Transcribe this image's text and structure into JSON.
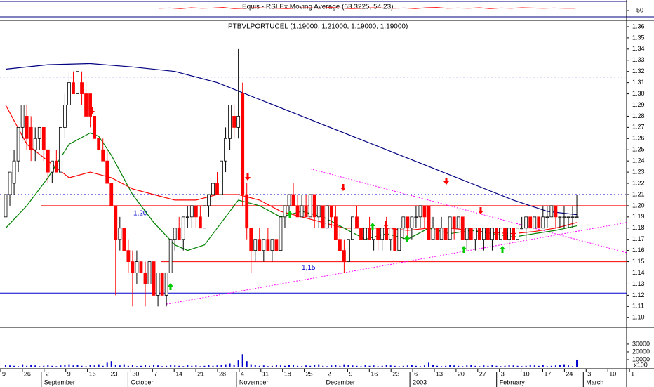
{
  "chart_data": {
    "type": "candlestick",
    "title": "PTBVLPORTUCEL (1.19000, 1.21000, 1.19000, 1.19000)",
    "ylim": [
      1.092,
      1.365
    ],
    "yticks": [
      {
        "value": 1.1,
        "label": "1.10"
      },
      1.11,
      1.12,
      1.13,
      1.14,
      1.15,
      1.16,
      1.17,
      1.18,
      1.19,
      {
        "value": 1.2,
        "label": "1.20"
      },
      1.21,
      1.22,
      1.23,
      1.24,
      1.25,
      1.26,
      1.27,
      1.28,
      1.29,
      {
        "value": 1.3,
        "label": "1.30"
      },
      1.31,
      1.32,
      1.33,
      1.34,
      1.35,
      1.36
    ],
    "up_color": "#ffffff",
    "down_color": "#ff0000",
    "ohlc": [
      [
        1.19,
        1.21,
        1.19,
        1.21
      ],
      [
        1.21,
        1.23,
        1.2,
        1.23
      ],
      [
        1.22,
        1.25,
        1.21,
        1.24
      ],
      [
        1.24,
        1.27,
        1.23,
        1.27
      ],
      [
        1.27,
        1.29,
        1.26,
        1.29
      ],
      [
        1.28,
        1.29,
        1.25,
        1.26
      ],
      [
        1.27,
        1.28,
        1.24,
        1.25
      ],
      [
        1.25,
        1.27,
        1.24,
        1.26
      ],
      [
        1.26,
        1.27,
        1.25,
        1.27
      ],
      [
        1.27,
        1.27,
        1.24,
        1.25
      ],
      [
        1.25,
        1.25,
        1.22,
        1.23
      ],
      [
        1.23,
        1.24,
        1.22,
        1.24
      ],
      [
        1.24,
        1.25,
        1.23,
        1.23
      ],
      [
        1.23,
        1.27,
        1.23,
        1.27
      ],
      [
        1.27,
        1.3,
        1.26,
        1.29
      ],
      [
        1.29,
        1.32,
        1.29,
        1.31
      ],
      [
        1.31,
        1.32,
        1.3,
        1.3
      ],
      [
        1.3,
        1.32,
        1.3,
        1.32
      ],
      [
        1.31,
        1.32,
        1.29,
        1.3
      ],
      [
        1.3,
        1.31,
        1.28,
        1.28
      ],
      [
        1.3,
        1.3,
        1.27,
        1.28
      ],
      [
        1.28,
        1.28,
        1.26,
        1.26
      ],
      [
        1.26,
        1.26,
        1.25,
        1.25
      ],
      [
        1.25,
        1.26,
        1.24,
        1.24
      ],
      [
        1.24,
        1.25,
        1.22,
        1.22
      ],
      [
        1.22,
        1.22,
        1.2,
        1.2
      ],
      [
        1.2,
        1.2,
        1.12,
        1.17
      ],
      [
        1.17,
        1.19,
        1.16,
        1.18
      ],
      [
        1.18,
        1.18,
        1.16,
        1.16
      ],
      [
        1.16,
        1.17,
        1.14,
        1.15
      ],
      [
        1.15,
        1.16,
        1.11,
        1.14
      ],
      [
        1.14,
        1.16,
        1.13,
        1.15
      ],
      [
        1.15,
        1.15,
        1.14,
        1.14
      ],
      [
        1.14,
        1.15,
        1.11,
        1.13
      ],
      [
        1.13,
        1.15,
        1.13,
        1.15
      ],
      [
        1.15,
        1.15,
        1.12,
        1.12
      ],
      [
        1.12,
        1.14,
        1.11,
        1.14
      ],
      [
        1.14,
        1.14,
        1.12,
        1.12
      ],
      [
        1.12,
        1.14,
        1.11,
        1.14
      ],
      [
        1.14,
        1.17,
        1.14,
        1.17
      ],
      [
        1.17,
        1.18,
        1.16,
        1.18
      ],
      [
        1.18,
        1.19,
        1.17,
        1.17
      ],
      [
        1.17,
        1.19,
        1.16,
        1.19
      ],
      [
        1.19,
        1.2,
        1.18,
        1.19
      ],
      [
        1.19,
        1.2,
        1.18,
        1.2
      ],
      [
        1.2,
        1.2,
        1.18,
        1.19
      ],
      [
        1.19,
        1.2,
        1.18,
        1.18
      ],
      [
        1.18,
        1.2,
        1.18,
        1.2
      ],
      [
        1.2,
        1.21,
        1.19,
        1.21
      ],
      [
        1.21,
        1.22,
        1.2,
        1.22
      ],
      [
        1.22,
        1.23,
        1.21,
        1.21
      ],
      [
        1.21,
        1.24,
        1.21,
        1.24
      ],
      [
        1.24,
        1.27,
        1.23,
        1.26
      ],
      [
        1.26,
        1.29,
        1.25,
        1.29
      ],
      [
        1.28,
        1.29,
        1.26,
        1.27
      ],
      [
        1.27,
        1.34,
        1.26,
        1.28
      ],
      [
        1.3,
        1.31,
        1.2,
        1.21
      ],
      [
        1.21,
        1.22,
        1.17,
        1.18
      ],
      [
        1.18,
        1.18,
        1.14,
        1.16
      ],
      [
        1.16,
        1.17,
        1.15,
        1.17
      ],
      [
        1.17,
        1.18,
        1.16,
        1.16
      ],
      [
        1.16,
        1.17,
        1.15,
        1.17
      ],
      [
        1.17,
        1.18,
        1.16,
        1.16
      ],
      [
        1.16,
        1.17,
        1.15,
        1.17
      ],
      [
        1.17,
        1.17,
        1.16,
        1.16
      ],
      [
        1.16,
        1.19,
        1.16,
        1.19
      ],
      [
        1.19,
        1.2,
        1.18,
        1.2
      ],
      [
        1.2,
        1.21,
        1.19,
        1.21
      ],
      [
        1.21,
        1.22,
        1.2,
        1.2
      ],
      [
        1.2,
        1.21,
        1.19,
        1.19
      ],
      [
        1.19,
        1.21,
        1.19,
        1.2
      ],
      [
        1.2,
        1.21,
        1.19,
        1.19
      ],
      [
        1.19,
        1.21,
        1.19,
        1.21
      ],
      [
        1.21,
        1.21,
        1.18,
        1.19
      ],
      [
        1.19,
        1.2,
        1.18,
        1.2
      ],
      [
        1.2,
        1.2,
        1.18,
        1.18
      ],
      [
        1.18,
        1.2,
        1.18,
        1.2
      ],
      [
        1.2,
        1.2,
        1.18,
        1.19
      ],
      [
        1.19,
        1.2,
        1.17,
        1.17
      ],
      [
        1.17,
        1.18,
        1.16,
        1.16
      ],
      [
        1.16,
        1.17,
        1.14,
        1.15
      ],
      [
        1.15,
        1.17,
        1.15,
        1.17
      ],
      [
        1.17,
        1.19,
        1.17,
        1.19
      ],
      [
        1.19,
        1.2,
        1.18,
        1.18
      ],
      [
        1.18,
        1.19,
        1.17,
        1.17
      ],
      [
        1.17,
        1.18,
        1.17,
        1.18
      ],
      [
        1.18,
        1.19,
        1.17,
        1.17
      ],
      [
        1.17,
        1.18,
        1.16,
        1.18
      ],
      [
        1.18,
        1.18,
        1.16,
        1.17
      ],
      [
        1.17,
        1.18,
        1.16,
        1.18
      ],
      [
        1.18,
        1.19,
        1.17,
        1.17
      ],
      [
        1.17,
        1.18,
        1.16,
        1.18
      ],
      [
        1.18,
        1.18,
        1.16,
        1.16
      ],
      [
        1.16,
        1.18,
        1.16,
        1.18
      ],
      [
        1.18,
        1.19,
        1.17,
        1.19
      ],
      [
        1.19,
        1.19,
        1.17,
        1.18
      ],
      [
        1.18,
        1.19,
        1.17,
        1.19
      ],
      [
        1.19,
        1.2,
        1.18,
        1.19
      ],
      [
        1.19,
        1.2,
        1.18,
        1.2
      ],
      [
        1.2,
        1.2,
        1.18,
        1.19
      ],
      [
        1.2,
        1.2,
        1.17,
        1.17
      ],
      [
        1.17,
        1.19,
        1.17,
        1.18
      ],
      [
        1.18,
        1.18,
        1.17,
        1.17
      ],
      [
        1.17,
        1.19,
        1.17,
        1.18
      ],
      [
        1.18,
        1.18,
        1.17,
        1.17
      ],
      [
        1.17,
        1.19,
        1.17,
        1.19
      ],
      [
        1.19,
        1.19,
        1.17,
        1.18
      ],
      [
        1.18,
        1.19,
        1.18,
        1.19
      ],
      [
        1.19,
        1.19,
        1.17,
        1.17
      ],
      [
        1.17,
        1.18,
        1.16,
        1.18
      ],
      [
        1.18,
        1.18,
        1.17,
        1.17
      ],
      [
        1.17,
        1.18,
        1.16,
        1.18
      ],
      [
        1.18,
        1.18,
        1.17,
        1.17
      ],
      [
        1.17,
        1.18,
        1.16,
        1.18
      ],
      [
        1.18,
        1.18,
        1.17,
        1.17
      ],
      [
        1.17,
        1.18,
        1.16,
        1.18
      ],
      [
        1.18,
        1.18,
        1.17,
        1.17
      ],
      [
        1.17,
        1.18,
        1.17,
        1.18
      ],
      [
        1.18,
        1.18,
        1.17,
        1.17
      ],
      [
        1.17,
        1.18,
        1.16,
        1.18
      ],
      [
        1.18,
        1.18,
        1.17,
        1.17
      ],
      [
        1.17,
        1.18,
        1.17,
        1.18
      ],
      [
        1.18,
        1.19,
        1.18,
        1.18
      ],
      [
        1.18,
        1.19,
        1.17,
        1.19
      ],
      [
        1.19,
        1.19,
        1.18,
        1.18
      ],
      [
        1.18,
        1.19,
        1.18,
        1.19
      ],
      [
        1.19,
        1.19,
        1.18,
        1.18
      ],
      [
        1.18,
        1.2,
        1.18,
        1.19
      ],
      [
        1.19,
        1.2,
        1.18,
        1.19
      ],
      [
        1.19,
        1.2,
        1.19,
        1.2
      ],
      [
        1.2,
        1.2,
        1.18,
        1.19
      ],
      [
        1.19,
        1.19,
        1.18,
        1.19
      ],
      [
        1.19,
        1.2,
        1.18,
        1.19
      ],
      [
        1.19,
        1.19,
        1.18,
        1.19
      ],
      [
        1.19,
        1.2,
        1.18,
        1.19
      ],
      [
        1.19,
        1.21,
        1.19,
        1.19
      ]
    ],
    "moving_averages": [
      {
        "color": "#000080",
        "x": [
          0,
          10,
          20,
          30,
          40,
          50,
          60,
          70,
          80,
          90,
          100,
          110,
          120,
          128,
          135
        ],
        "values": [
          1.322,
          1.326,
          1.327,
          1.324,
          1.32,
          1.31,
          1.295,
          1.28,
          1.265,
          1.25,
          1.235,
          1.22,
          1.205,
          1.195,
          1.192
        ]
      },
      {
        "color": "#ff0000",
        "x": [
          0,
          5,
          10,
          15,
          20,
          25,
          30,
          35,
          40,
          45,
          50,
          55,
          60,
          65,
          70,
          75,
          80,
          85,
          90,
          95,
          100,
          105,
          110,
          115,
          120,
          125,
          130,
          135
        ],
        "values": [
          1.29,
          1.255,
          1.24,
          1.225,
          1.23,
          1.225,
          1.215,
          1.21,
          1.205,
          1.205,
          1.21,
          1.21,
          1.205,
          1.195,
          1.19,
          1.185,
          1.18,
          1.18,
          1.18,
          1.178,
          1.18,
          1.18,
          1.178,
          1.176,
          1.175,
          1.177,
          1.18,
          1.185
        ]
      },
      {
        "color": "#008000",
        "x": [
          0,
          5,
          10,
          15,
          20,
          22,
          25,
          30,
          35,
          40,
          43,
          47,
          50,
          55,
          60,
          65,
          70,
          75,
          80,
          85,
          90,
          95,
          100,
          105,
          110,
          115,
          120,
          125,
          130,
          135
        ],
        "values": [
          1.18,
          1.2,
          1.225,
          1.255,
          1.265,
          1.262,
          1.245,
          1.21,
          1.185,
          1.165,
          1.16,
          1.165,
          1.18,
          1.205,
          1.2,
          1.19,
          1.195,
          1.19,
          1.18,
          1.17,
          1.175,
          1.17,
          1.18,
          1.175,
          1.178,
          1.175,
          1.172,
          1.175,
          1.178,
          1.182
        ]
      }
    ],
    "levels": [
      {
        "value": 1.315,
        "color": "#0000cc",
        "dashed": true
      },
      {
        "value": 1.21,
        "color": "#0000cc",
        "dashed": true
      },
      {
        "value": 1.2,
        "color": "#ff0000",
        "dashed": false,
        "label": "1,20"
      },
      {
        "value": 1.15,
        "color": "#ff0000",
        "dashed": false,
        "label": "1,15"
      },
      {
        "value": 1.122,
        "color": "#0000cc",
        "dashed": false
      }
    ],
    "trendlines": [
      {
        "color": "#ff00ff",
        "from": [
          38,
          1.112
        ],
        "to": [
          147,
          1.185
        ]
      },
      {
        "color": "#ff00ff",
        "from": [
          72,
          1.233
        ],
        "to": [
          147,
          1.158
        ]
      }
    ],
    "volume": {
      "color": "#0000cc",
      "unit": "x100",
      "ylim": [
        0,
        49000
      ],
      "yticks": [
        10000,
        20000,
        30000
      ],
      "values": [
        3000,
        2500,
        2000,
        1500,
        4000,
        2000,
        3000,
        2500,
        1500,
        2000,
        3000,
        2000,
        1500,
        2500,
        3000,
        4000,
        2500,
        3000,
        2000,
        1500,
        3000,
        2500,
        4000,
        2000,
        6000,
        8000,
        3000,
        2500,
        4000,
        2000,
        3000,
        1500,
        2000,
        3500,
        2000,
        3000,
        2500,
        1500,
        2000,
        3000,
        2500,
        2000,
        1500,
        3000,
        2000,
        2500,
        1500,
        2000,
        3000,
        2000,
        2500,
        3000,
        4000,
        5000,
        3000,
        9000,
        17000,
        8000,
        4000,
        3000,
        2000,
        2500,
        1500,
        2000,
        3000,
        2500,
        2000,
        3500,
        3000,
        2000,
        1500,
        2500,
        2000,
        3000,
        4000,
        2000,
        1500,
        2500,
        3000,
        2000,
        4000,
        3000,
        2500,
        2000,
        1500,
        3000,
        2000,
        2500,
        1500,
        2000,
        3000,
        2500,
        2000,
        1500,
        2000,
        2500,
        3000,
        2000,
        1500,
        2500,
        6000,
        3000,
        2000,
        1500,
        2000,
        3000,
        2500,
        2000,
        1500,
        2500,
        3000,
        2000,
        1500,
        2500,
        2000,
        3500,
        2000,
        1500,
        2000,
        3000,
        2500,
        2000,
        1500,
        2000,
        3000,
        2500,
        2000,
        3000,
        1500,
        2000,
        2500,
        3000,
        4000,
        2500,
        1500,
        10000
      ]
    },
    "indicator": {
      "title": "Equis - RSI Ex Moving Average (63.3225, 54.23)",
      "color": "#ff0000",
      "ylim": [
        20,
        80
      ],
      "yticks": [
        50
      ],
      "values": [
        58,
        59,
        57,
        60,
        58,
        59,
        61,
        57,
        58,
        60,
        59,
        58,
        57,
        59,
        60,
        58,
        61,
        59,
        57,
        58,
        60,
        59,
        58,
        59,
        57,
        60,
        61,
        58,
        59,
        58,
        60,
        57,
        59,
        58,
        60,
        59,
        58,
        59,
        58,
        58
      ]
    },
    "xticks": [
      "9",
      "26",
      "2",
      "9",
      "16",
      "23",
      "30",
      "7",
      "14",
      "21",
      "28",
      "4",
      "11",
      "18",
      "25",
      "2",
      "9",
      "16",
      "23",
      "6",
      "13",
      "20",
      "27",
      "3",
      "10",
      "17",
      "24",
      "3",
      "10",
      "1"
    ],
    "months": [
      null,
      null,
      "September",
      null,
      null,
      null,
      "October",
      null,
      null,
      null,
      null,
      "November",
      null,
      null,
      null,
      "December",
      null,
      null,
      null,
      "2003",
      null,
      null,
      null,
      "February",
      null,
      null,
      null,
      "March",
      null,
      null
    ]
  }
}
